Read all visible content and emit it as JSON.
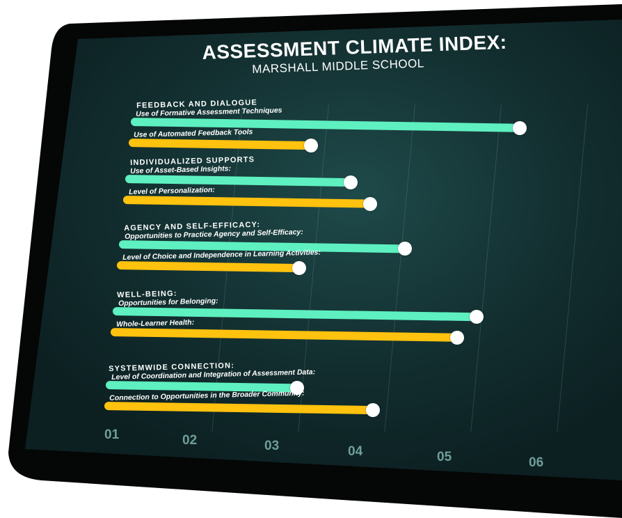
{
  "chart_data": {
    "type": "bar",
    "orientation": "horizontal",
    "title": "ASSESSMENT CLIMATE INDEX:",
    "subtitle": "MARSHALL MIDDLE SCHOOL",
    "x_ticks": [
      "01",
      "02",
      "03",
      "04",
      "05",
      "06"
    ],
    "xlim": [
      1,
      6
    ],
    "grid": true,
    "colors": {
      "teal": "#5ef0c0",
      "yellow": "#ffc20e",
      "background": "#0f2a2b"
    },
    "groups": [
      {
        "name": "FEEDBACK AND DIALOGUE",
        "items": [
          {
            "label": "Use of Formative Assessment Techniques",
            "value": 5.4,
            "color": "teal"
          },
          {
            "label": "Use of Automated Feedback Tools",
            "value": 3.0,
            "color": "yellow"
          }
        ]
      },
      {
        "name": "INDIVIDUALIZED SUPPORTS",
        "items": [
          {
            "label": "Use of Asset-Based Insights:",
            "value": 3.5,
            "color": "teal"
          },
          {
            "label": "Level of Personalization:",
            "value": 3.75,
            "color": "yellow"
          }
        ]
      },
      {
        "name": "AGENCY AND SELF-EFFICACY:",
        "items": [
          {
            "label": "Opportunities to Practice Agency and Self-Efficacy:",
            "value": 4.2,
            "color": "teal"
          },
          {
            "label": "Level of Choice and Independence in Learning Activities:",
            "value": 3.0,
            "color": "yellow"
          }
        ]
      },
      {
        "name": "WELL-BEING:",
        "items": [
          {
            "label": "Opportunities for Belonging:",
            "value": 5.1,
            "color": "teal"
          },
          {
            "label": "Whole-Learner Health:",
            "value": 4.9,
            "color": "yellow"
          }
        ]
      },
      {
        "name": "SYSTEMWIDE CONNECTION:",
        "items": [
          {
            "label": "Level of Coordination and Integration of Assessment Data:",
            "value": 3.1,
            "color": "teal"
          },
          {
            "label": "Connection to Opportunities in the Broader Community:",
            "value": 4.0,
            "color": "yellow"
          }
        ]
      }
    ]
  }
}
